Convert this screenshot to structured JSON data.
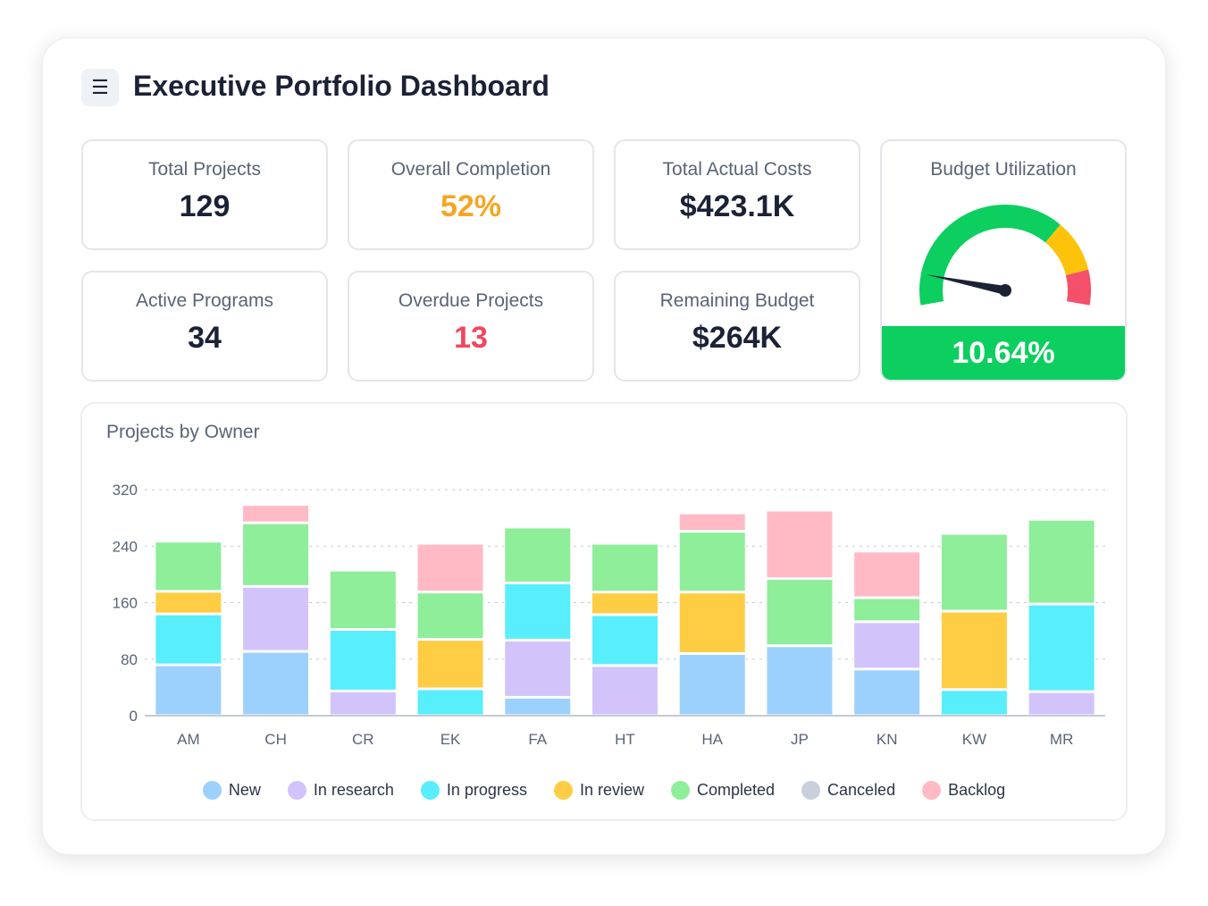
{
  "header": {
    "title": "Executive Portfolio Dashboard",
    "menu_icon": "hamburger-icon"
  },
  "kpis": [
    {
      "label": "Total Projects",
      "value": "129",
      "color": "#1b2236"
    },
    {
      "label": "Overall Completion",
      "value": "52%",
      "color": "#f5a623"
    },
    {
      "label": "Total Actual Costs",
      "value": "$423.1K",
      "color": "#1b2236"
    },
    {
      "label": "Active Programs",
      "value": "34",
      "color": "#1b2236"
    },
    {
      "label": "Overdue Projects",
      "value": "13",
      "color": "#f0475e"
    },
    {
      "label": "Remaining Budget",
      "value": "$264K",
      "color": "#1b2236"
    }
  ],
  "budget": {
    "label": "Budget Utilization",
    "value": "10.64%",
    "percent": 10.64,
    "colors": {
      "green": "#0ccf5f",
      "yellow": "#fdc30a",
      "red": "#f4506a",
      "needle": "#1b2236"
    }
  },
  "chart_data": {
    "type": "bar",
    "stacked": true,
    "title": "Projects by Owner",
    "categories": [
      "AM",
      "CH",
      "CR",
      "EK",
      "FA",
      "HT",
      "HA",
      "JP",
      "KN",
      "KW",
      "MR"
    ],
    "ylim": [
      0,
      320
    ],
    "yticks": [
      0,
      80,
      160,
      240,
      320
    ],
    "grid": true,
    "legend_position": "bottom",
    "series": [
      {
        "name": "New",
        "color": "#9dd1fd",
        "values": [
          72,
          91,
          0,
          0,
          26,
          0,
          88,
          99,
          66,
          0,
          0
        ]
      },
      {
        "name": "In research",
        "color": "#d3c3fb",
        "values": [
          0,
          92,
          35,
          0,
          81,
          71,
          0,
          0,
          67,
          0,
          34
        ]
      },
      {
        "name": "In progress",
        "color": "#58eefb",
        "values": [
          72,
          0,
          87,
          38,
          81,
          72,
          0,
          0,
          0,
          37,
          124
        ]
      },
      {
        "name": "In review",
        "color": "#fecd43",
        "values": [
          32,
          0,
          0,
          70,
          0,
          32,
          87,
          0,
          0,
          111,
          0
        ]
      },
      {
        "name": "Completed",
        "color": "#8eee9a",
        "values": [
          71,
          90,
          84,
          67,
          79,
          69,
          86,
          95,
          34,
          110,
          120
        ]
      },
      {
        "name": "Canceled",
        "color": "#c9cfdb",
        "values": [
          0,
          0,
          0,
          0,
          0,
          0,
          0,
          0,
          0,
          0,
          0
        ]
      },
      {
        "name": "Backlog",
        "color": "#ffbac6",
        "values": [
          0,
          26,
          0,
          69,
          0,
          0,
          26,
          97,
          66,
          0,
          0
        ]
      }
    ]
  }
}
